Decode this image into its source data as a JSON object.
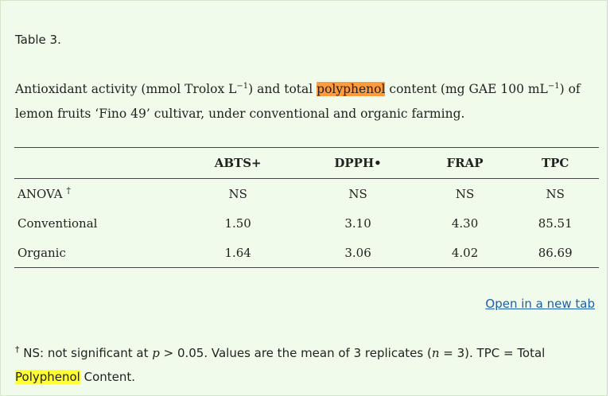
{
  "table_label": "Table 3.",
  "caption": {
    "part1": "Antioxidant activity (mmol Trolox L",
    "sup1": "−1",
    "part2": ") and total ",
    "highlight": "polyphenol",
    "part3": " content (mg GAE 100 mL",
    "sup2": "−1",
    "part4": ") of lemon fruits ‘Fino 49’ cultivar, under conventional and organic farming."
  },
  "table": {
    "columns": [
      "",
      "ABTS+",
      "DPPH•",
      "FRAP",
      "TPC"
    ],
    "rows": [
      {
        "label": "ANOVA",
        "mark": "†",
        "values": [
          "NS",
          "NS",
          "NS",
          "NS"
        ]
      },
      {
        "label": "Conventional",
        "mark": "",
        "values": [
          "1.50",
          "3.10",
          "4.30",
          "85.51"
        ]
      },
      {
        "label": "Organic",
        "mark": "",
        "values": [
          "1.64",
          "3.06",
          "4.02",
          "86.69"
        ]
      }
    ]
  },
  "open_link": "Open in a new tab",
  "footnote": {
    "dagger": "†",
    "t1": " NS: not significant at ",
    "p": "p",
    "t2": " > 0.05. Values are the mean of 3 replicates (",
    "n": "n",
    "t3": " = 3). TPC = Total ",
    "highlight": "Polyphenol",
    "t4": " Content."
  }
}
